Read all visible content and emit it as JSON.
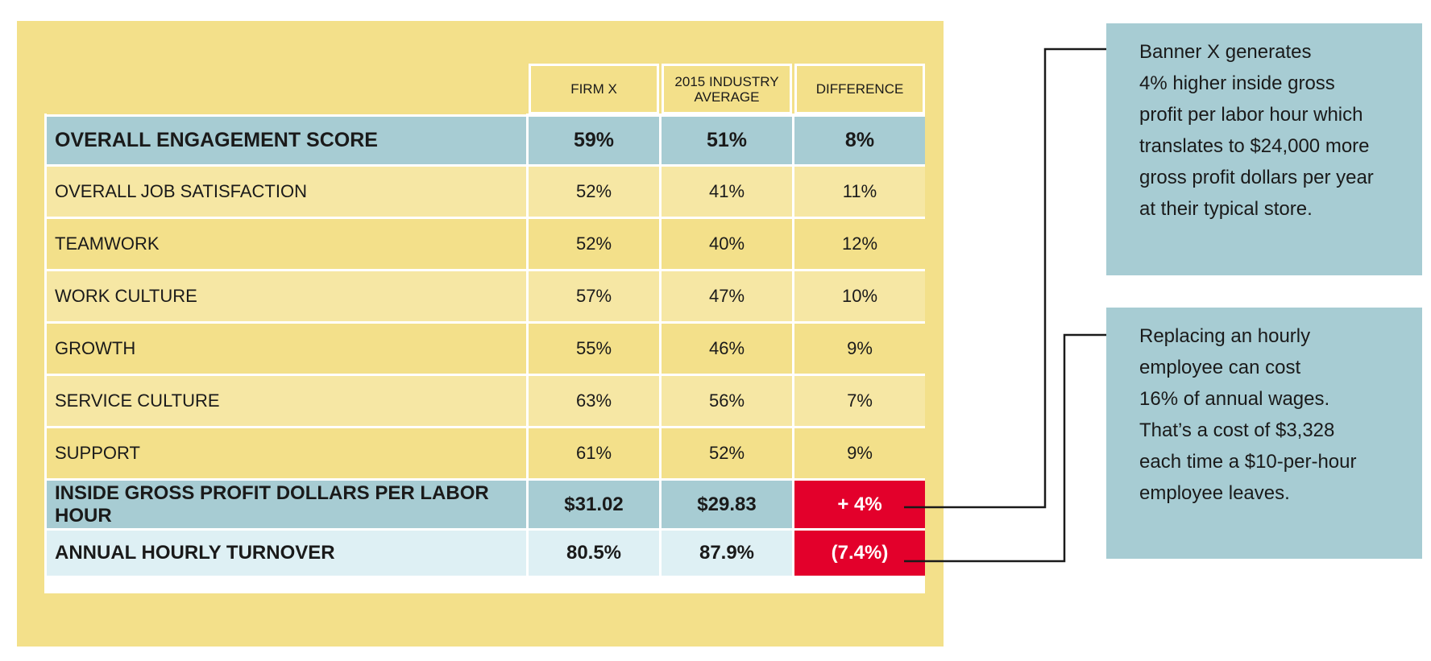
{
  "chart_data": {
    "type": "table",
    "columns": [
      "",
      "FIRM X",
      "2015 INDUSTRY AVERAGE",
      "DIFFERENCE"
    ],
    "rows": [
      {
        "label": "OVERALL ENGAGEMENT SCORE",
        "values": [
          "59%",
          "51%",
          "8%"
        ],
        "style": "main"
      },
      {
        "label": "OVERALL JOB SATISFACTION",
        "values": [
          "52%",
          "41%",
          "11%"
        ],
        "style": "sub"
      },
      {
        "label": "TEAMWORK",
        "values": [
          "52%",
          "40%",
          "12%"
        ],
        "style": "sub"
      },
      {
        "label": "WORK CULTURE",
        "values": [
          "57%",
          "47%",
          "10%"
        ],
        "style": "sub"
      },
      {
        "label": "GROWTH",
        "values": [
          "55%",
          "46%",
          "9%"
        ],
        "style": "sub"
      },
      {
        "label": "SERVICE CULTURE",
        "values": [
          "63%",
          "56%",
          "7%"
        ],
        "style": "sub"
      },
      {
        "label": "SUPPORT",
        "values": [
          "61%",
          "52%",
          "9%"
        ],
        "style": "sub"
      },
      {
        "label": "INSIDE GROSS PROFIT DOLLARS PER LABOR HOUR",
        "values": [
          "$31.02",
          "$29.83",
          "+ 4%"
        ],
        "style": "gp"
      },
      {
        "label": "ANNUAL HOURLY TURNOVER",
        "values": [
          "80.5%",
          "87.9%",
          "(7.4%)"
        ],
        "style": "to"
      }
    ]
  },
  "header": {
    "firm": "FIRM X",
    "industry_line1": "2015 INDUSTRY",
    "industry_line2": "AVERAGE",
    "difference": "DIFFERENCE"
  },
  "callouts": [
    {
      "lines": [
        "Banner X generates",
        "4% higher inside gross",
        "profit per labor hour which",
        "translates to $24,000 more",
        "gross profit dollars per year",
        "at their typical store."
      ]
    },
    {
      "lines": [
        "Replacing an hourly",
        "employee can cost",
        "16% of annual wages.",
        "That’s a cost of $3,328",
        "each time a $10-per-hour",
        "employee leaves."
      ]
    }
  ],
  "colors": {
    "panel": "#f3e08a",
    "row_light": "#f6e7a4",
    "row_blue": "#a7ccd3",
    "row_pale_blue": "#def0f4",
    "highlight_red": "#e3002b",
    "callout_blue": "#a7ccd3"
  }
}
